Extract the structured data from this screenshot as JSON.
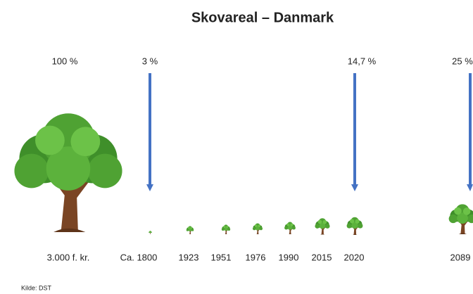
{
  "title": "Skovareal – Danmark",
  "periods": [
    {
      "label": "3.000 f. kr.",
      "percent": "100 %"
    },
    {
      "label": "Ca. 1800",
      "percent": "3 %"
    },
    {
      "label": "1923"
    },
    {
      "label": "1951"
    },
    {
      "label": "1976"
    },
    {
      "label": "1990"
    },
    {
      "label": "2015"
    },
    {
      "label": "2020",
      "percent": "14,7 %"
    },
    {
      "label": "2089",
      "percent": "25 %"
    }
  ],
  "source": "Kilde: DST"
}
